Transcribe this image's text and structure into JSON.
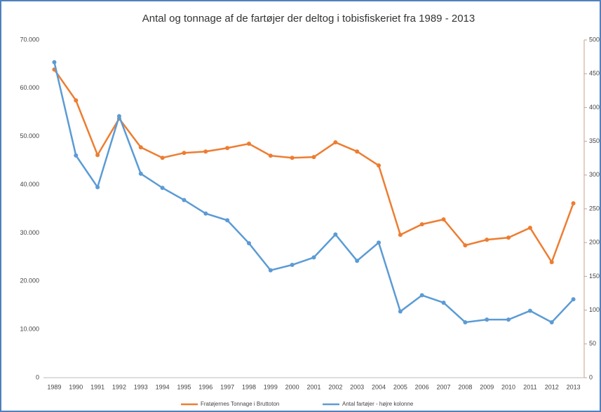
{
  "chart_data": {
    "type": "line",
    "title": "Antal og tonnage af de fartøjer der deltog i tobisfiskeriet fra 1989 - 2013",
    "categories": [
      "1989",
      "1990",
      "1991",
      "1992",
      "1993",
      "1994",
      "1995",
      "1996",
      "1997",
      "1998",
      "1999",
      "2000",
      "2001",
      "2002",
      "2003",
      "2004",
      "2005",
      "2006",
      "2007",
      "2008",
      "2009",
      "2010",
      "2011",
      "2012",
      "2013"
    ],
    "series": [
      {
        "name": "Fratøjernes Tonnage i Bruttoton",
        "color": "#ed7d31",
        "axis": "y",
        "values": [
          63860,
          57470,
          46150,
          53700,
          47750,
          45570,
          46590,
          46880,
          47600,
          48480,
          46010,
          45570,
          45720,
          48770,
          46880,
          43980,
          29610,
          31790,
          32800,
          27430,
          28590,
          29030,
          31060,
          23950,
          36140
        ]
      },
      {
        "name": "Antal fartøjer - højre kolonne",
        "color": "#5b9bd5",
        "axis": "y2",
        "values": [
          467,
          329,
          282,
          387,
          302,
          281,
          263,
          243,
          233,
          199,
          159,
          167,
          178,
          212,
          173,
          200,
          98,
          122,
          111,
          82,
          86,
          86,
          99,
          82,
          116
        ]
      }
    ],
    "ylim": [
      0,
      70000
    ],
    "yticks": [
      0,
      {
        "value": 10000,
        "label": "10.000"
      },
      {
        "value": 20000,
        "label": "20.000"
      },
      {
        "value": 30000,
        "label": "30.000"
      },
      {
        "value": 40000,
        "label": "40.000"
      },
      {
        "value": 50000,
        "label": "50.000"
      },
      {
        "value": 60000,
        "label": "60.000"
      },
      {
        "value": 70000,
        "label": "70.000"
      }
    ],
    "y2lim": [
      0,
      500
    ],
    "y2ticks": [
      0,
      50,
      100,
      150,
      200,
      250,
      300,
      350,
      400,
      450,
      500
    ],
    "grid": false
  }
}
